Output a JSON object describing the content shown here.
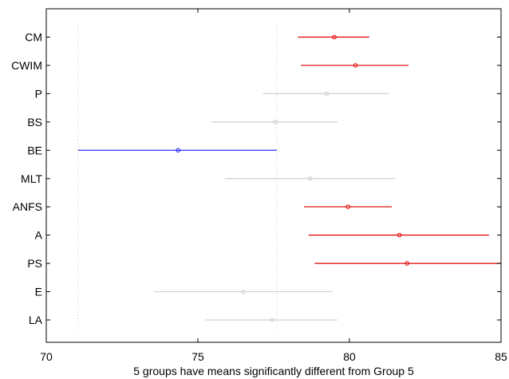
{
  "chart_data": {
    "type": "interval",
    "title": "",
    "xlabel": "5 groups have means significantly different from Group 5",
    "ylabel": "",
    "xlim": [
      70,
      85
    ],
    "xticks": [
      "70",
      "75",
      "80",
      "85"
    ],
    "grid": false,
    "reference_lines_x": [
      71.05,
      77.6
    ],
    "groups": [
      {
        "label": "CM",
        "mean": 79.5,
        "low": 78.3,
        "high": 80.65,
        "status": "different"
      },
      {
        "label": "CWIM",
        "mean": 80.2,
        "low": 78.4,
        "high": 81.95,
        "status": "different"
      },
      {
        "label": "P",
        "mean": 79.25,
        "low": 77.15,
        "high": 81.3,
        "status": "not-different"
      },
      {
        "label": "BS",
        "mean": 77.55,
        "low": 75.45,
        "high": 79.6,
        "status": "not-different"
      },
      {
        "label": "BE",
        "mean": 74.35,
        "low": 71.05,
        "high": 77.6,
        "status": "selected"
      },
      {
        "label": "MLT",
        "mean": 78.7,
        "low": 75.9,
        "high": 81.5,
        "status": "not-different"
      },
      {
        "label": "ANFS",
        "mean": 79.95,
        "low": 78.5,
        "high": 81.4,
        "status": "different"
      },
      {
        "label": "A",
        "mean": 81.65,
        "low": 78.65,
        "high": 84.6,
        "status": "different"
      },
      {
        "label": "PS",
        "mean": 81.9,
        "low": 78.85,
        "high": 85.0,
        "status": "different"
      },
      {
        "label": "E",
        "mean": 76.5,
        "low": 73.55,
        "high": 79.45,
        "status": "not-different"
      },
      {
        "label": "LA",
        "mean": 77.45,
        "low": 75.25,
        "high": 79.6,
        "status": "not-different"
      }
    ]
  },
  "colors": {
    "different": "#e00000",
    "not-different": "#cfcfcf",
    "selected": "#1a1aff",
    "reference_line": "#c8c8c8",
    "axis": "#000000"
  }
}
